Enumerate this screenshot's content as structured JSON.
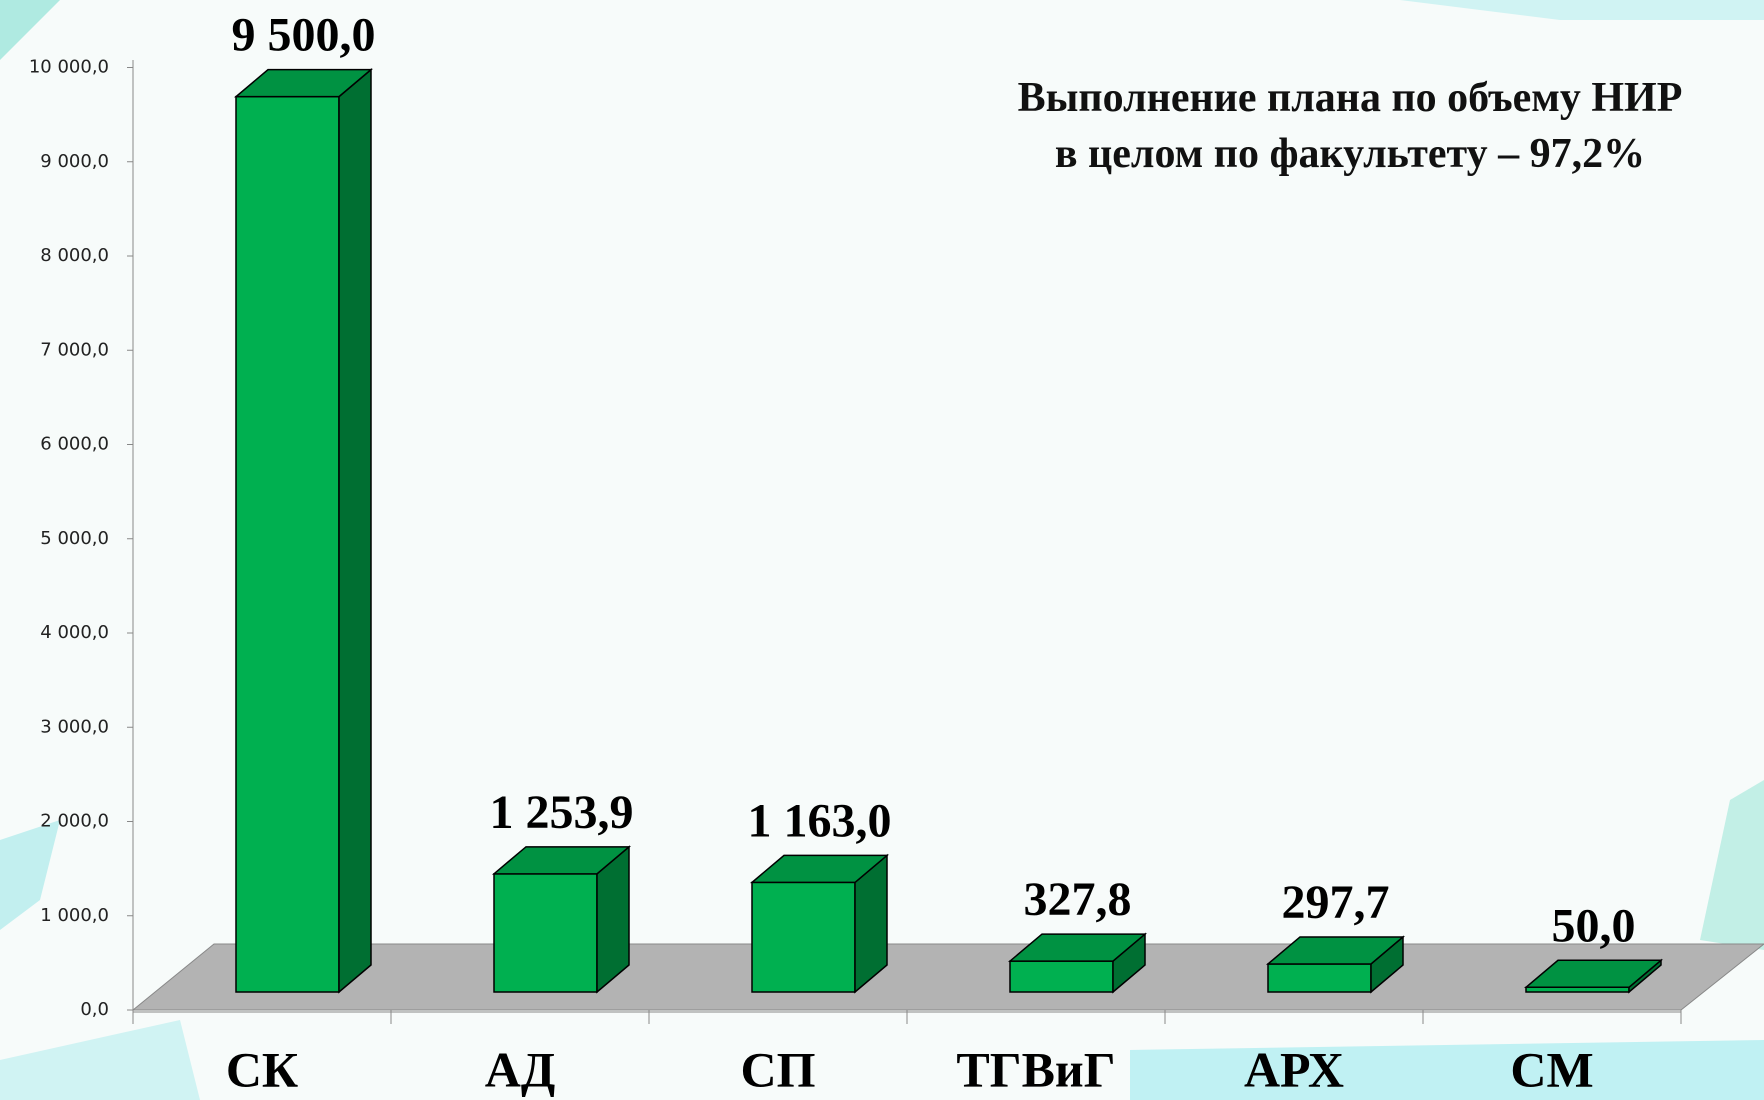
{
  "chart_data": {
    "type": "bar3d",
    "title": "Выполнение плана по объему НИР в целом по факультету – 97,2%",
    "categories": [
      "СК",
      "АД",
      "СП",
      "ТГВиГ",
      "АРХ",
      "СМ"
    ],
    "values": [
      9500,
      1253.9,
      1163,
      327.8,
      297.7,
      50
    ],
    "value_labels": [
      "9 500,0",
      "1 253,9",
      "1 163,0",
      "327,8",
      "297,7",
      "50,0"
    ],
    "color": "#00b050",
    "ylim": [
      0,
      10000
    ],
    "yticks": [
      {
        "value": 0,
        "label": "0,0"
      },
      {
        "value": 1000,
        "label": "1 000,0"
      },
      {
        "value": 2000,
        "label": "2 000,0"
      },
      {
        "value": 3000,
        "label": "3 000,0"
      },
      {
        "value": 4000,
        "label": "4 000,0"
      },
      {
        "value": 5000,
        "label": "5 000,0"
      },
      {
        "value": 6000,
        "label": "6 000,0"
      },
      {
        "value": 7000,
        "label": "7 000,0"
      },
      {
        "value": 8000,
        "label": "8 000,0"
      },
      {
        "value": 9000,
        "label": "9 000,0"
      },
      {
        "value": 10000,
        "label": "10 000,0"
      }
    ],
    "grid": false
  }
}
